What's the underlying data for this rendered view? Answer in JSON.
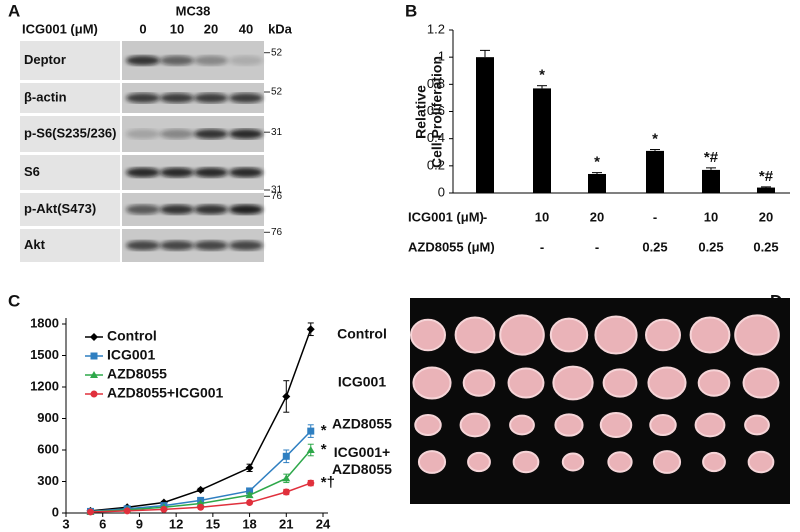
{
  "blot": {
    "label": "A",
    "title": "MC38",
    "treatment": "ICG001 (μM)",
    "lanes": [
      "0",
      "10",
      "20",
      "40"
    ],
    "unit": "kDa",
    "rows": [
      {
        "name": "Deptor",
        "marker": "52"
      },
      {
        "name": "β-actin",
        "marker": "52"
      },
      {
        "name": "p-S6(S235/236)",
        "marker": "31"
      },
      {
        "name": "S6",
        "marker": "31"
      },
      {
        "name": "p-Akt(S473)",
        "marker": "76"
      },
      {
        "name": "Akt",
        "marker": "76"
      }
    ]
  },
  "chart_data": [
    {
      "type": "bar",
      "panel": "B",
      "ylabel": [
        "Relative",
        "Cell Proliferation"
      ],
      "color": "#000000",
      "values": [
        1.0,
        0.77,
        0.14,
        0.31,
        0.17,
        0.04
      ],
      "errors": [
        0.05,
        0.02,
        0.01,
        0.01,
        0.015,
        0.005
      ],
      "annotations": [
        null,
        "*",
        "*",
        "*",
        "*#",
        "*#"
      ],
      "ylim": [
        0,
        1.2
      ],
      "yticks": [
        0,
        0.2,
        0.4,
        0.6,
        0.8,
        1,
        1.2
      ],
      "conditions": [
        {
          "name": "ICG001 (μM)",
          "values": [
            "-",
            "10",
            "20",
            "-",
            "10",
            "20"
          ]
        },
        {
          "name": "AZD8055 (μM)",
          "values": [
            "-",
            "-",
            "-",
            "0.25",
            "0.25",
            "0.25"
          ]
        }
      ]
    },
    {
      "type": "line",
      "panel": "C",
      "x": [
        5,
        8,
        11,
        14,
        18,
        21,
        23
      ],
      "xlim": [
        3,
        24
      ],
      "xticks": [
        3,
        6,
        9,
        12,
        15,
        18,
        21,
        24
      ],
      "ylim": [
        0,
        1800
      ],
      "yticks": [
        0,
        300,
        600,
        900,
        1200,
        1500,
        1800
      ],
      "legend": "upper left",
      "series": [
        {
          "name": "Control",
          "color": "#000000",
          "marker": "diamond",
          "values": [
            20,
            55,
            100,
            220,
            430,
            1110,
            1750
          ],
          "errors": [
            5,
            8,
            10,
            15,
            35,
            150,
            60
          ]
        },
        {
          "name": "ICG001",
          "color": "#2f7fc1",
          "marker": "square",
          "values": [
            15,
            40,
            70,
            120,
            210,
            540,
            780
          ],
          "errors": [
            4,
            5,
            8,
            10,
            25,
            60,
            60
          ]
        },
        {
          "name": "AZD8055",
          "color": "#2ea84a",
          "marker": "triangle",
          "values": [
            12,
            30,
            55,
            90,
            170,
            330,
            600
          ],
          "errors": [
            3,
            5,
            6,
            8,
            20,
            40,
            55
          ]
        },
        {
          "name": "AZD8055+ICG001",
          "color": "#e0303c",
          "marker": "circle",
          "values": [
            10,
            20,
            35,
            55,
            100,
            200,
            285
          ],
          "errors": [
            3,
            4,
            5,
            6,
            12,
            25,
            25
          ]
        }
      ],
      "annotations": [
        "*",
        "*",
        "*†"
      ]
    }
  ],
  "photo": {
    "label": "D",
    "rows": [
      [
        "Control"
      ],
      [
        "ICG001"
      ],
      [
        "AZD8055"
      ],
      [
        "ICG001+",
        "AZD8055"
      ]
    ]
  }
}
